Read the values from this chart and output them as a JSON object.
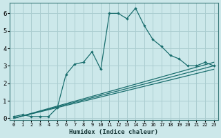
{
  "xlabel": "Humidex (Indice chaleur)",
  "bg_color": "#cce8ea",
  "grid_color": "#aacdd0",
  "line_color": "#1a6e6e",
  "xlim": [
    -0.5,
    23.5
  ],
  "ylim": [
    -0.1,
    6.6
  ],
  "xticks": [
    0,
    1,
    2,
    3,
    4,
    5,
    6,
    7,
    8,
    9,
    10,
    11,
    12,
    13,
    14,
    15,
    16,
    17,
    18,
    19,
    20,
    21,
    22,
    23
  ],
  "yticks": [
    0,
    1,
    2,
    3,
    4,
    5,
    6
  ],
  "series": [
    {
      "x": [
        0,
        1,
        2,
        3,
        4,
        5,
        6,
        7,
        8,
        9,
        10,
        11,
        12,
        13,
        14,
        15,
        16,
        17,
        18,
        19,
        20,
        21,
        22,
        23
      ],
      "y": [
        0.1,
        0.2,
        0.1,
        0.1,
        0.1,
        0.6,
        2.5,
        3.1,
        3.2,
        3.8,
        2.8,
        6.0,
        6.0,
        5.7,
        6.3,
        5.3,
        4.5,
        4.1,
        3.6,
        3.4,
        3.0,
        3.0,
        3.2,
        3.0
      ]
    },
    {
      "x": [
        0,
        23
      ],
      "y": [
        0.0,
        3.2
      ]
    },
    {
      "x": [
        0,
        23
      ],
      "y": [
        0.0,
        3.0
      ]
    },
    {
      "x": [
        0,
        23
      ],
      "y": [
        0.0,
        2.8
      ]
    }
  ]
}
